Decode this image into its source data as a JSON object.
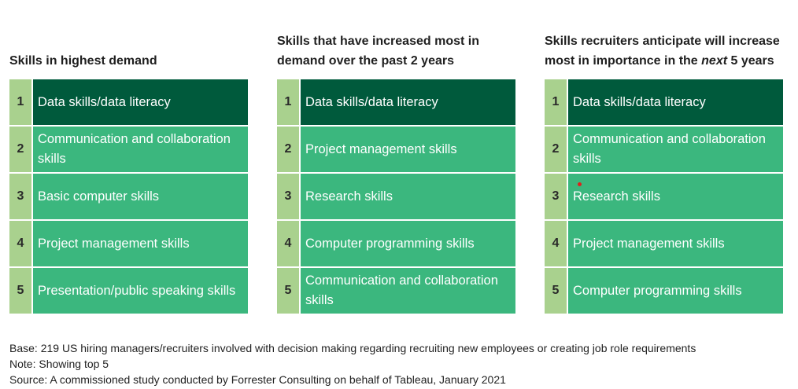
{
  "chart_data": {
    "type": "table",
    "panels": [
      {
        "title_parts": [
          {
            "text": "Skills in highest demand",
            "italic": false
          }
        ],
        "items": [
          {
            "rank": "1",
            "label": "Data skills/data literacy"
          },
          {
            "rank": "2",
            "label": "Communication and collaboration skills"
          },
          {
            "rank": "3",
            "label": "Basic computer skills"
          },
          {
            "rank": "4",
            "label": "Project management skills"
          },
          {
            "rank": "5",
            "label": "Presentation/public speaking skills"
          }
        ]
      },
      {
        "title_parts": [
          {
            "text": "Skills that have increased most in demand over the past 2 years",
            "italic": false
          }
        ],
        "items": [
          {
            "rank": "1",
            "label": "Data skills/data literacy"
          },
          {
            "rank": "2",
            "label": "Project management skills"
          },
          {
            "rank": "3",
            "label": "Research skills"
          },
          {
            "rank": "4",
            "label": "Computer programming skills"
          },
          {
            "rank": "5",
            "label": "Communication and collaboration skills"
          }
        ]
      },
      {
        "title_parts": [
          {
            "text": "Skills recruiters anticipate will increase most in importance in the ",
            "italic": false
          },
          {
            "text": "next",
            "italic": true
          },
          {
            "text": " 5 years",
            "italic": false
          }
        ],
        "items": [
          {
            "rank": "1",
            "label": "Data skills/data literacy"
          },
          {
            "rank": "2",
            "label": "Communication and collaboration skills"
          },
          {
            "rank": "3",
            "label": "Research skills"
          },
          {
            "rank": "4",
            "label": "Project management skills"
          },
          {
            "rank": "5",
            "label": "Computer programming skills"
          }
        ]
      }
    ]
  },
  "colors": {
    "top_rank_fill": "#005a3c",
    "row_fill": "#3bb77e",
    "rank_fill": "#a9d18e",
    "marker": "#e0201b"
  },
  "footer": {
    "base": "Base: 219 US hiring managers/recruiters involved with decision making regarding recruiting new employees or creating job role requirements",
    "note": "Note: Showing top 5",
    "source": "Source: A commissioned study conducted by Forrester Consulting on behalf of Tableau, January 2021"
  }
}
